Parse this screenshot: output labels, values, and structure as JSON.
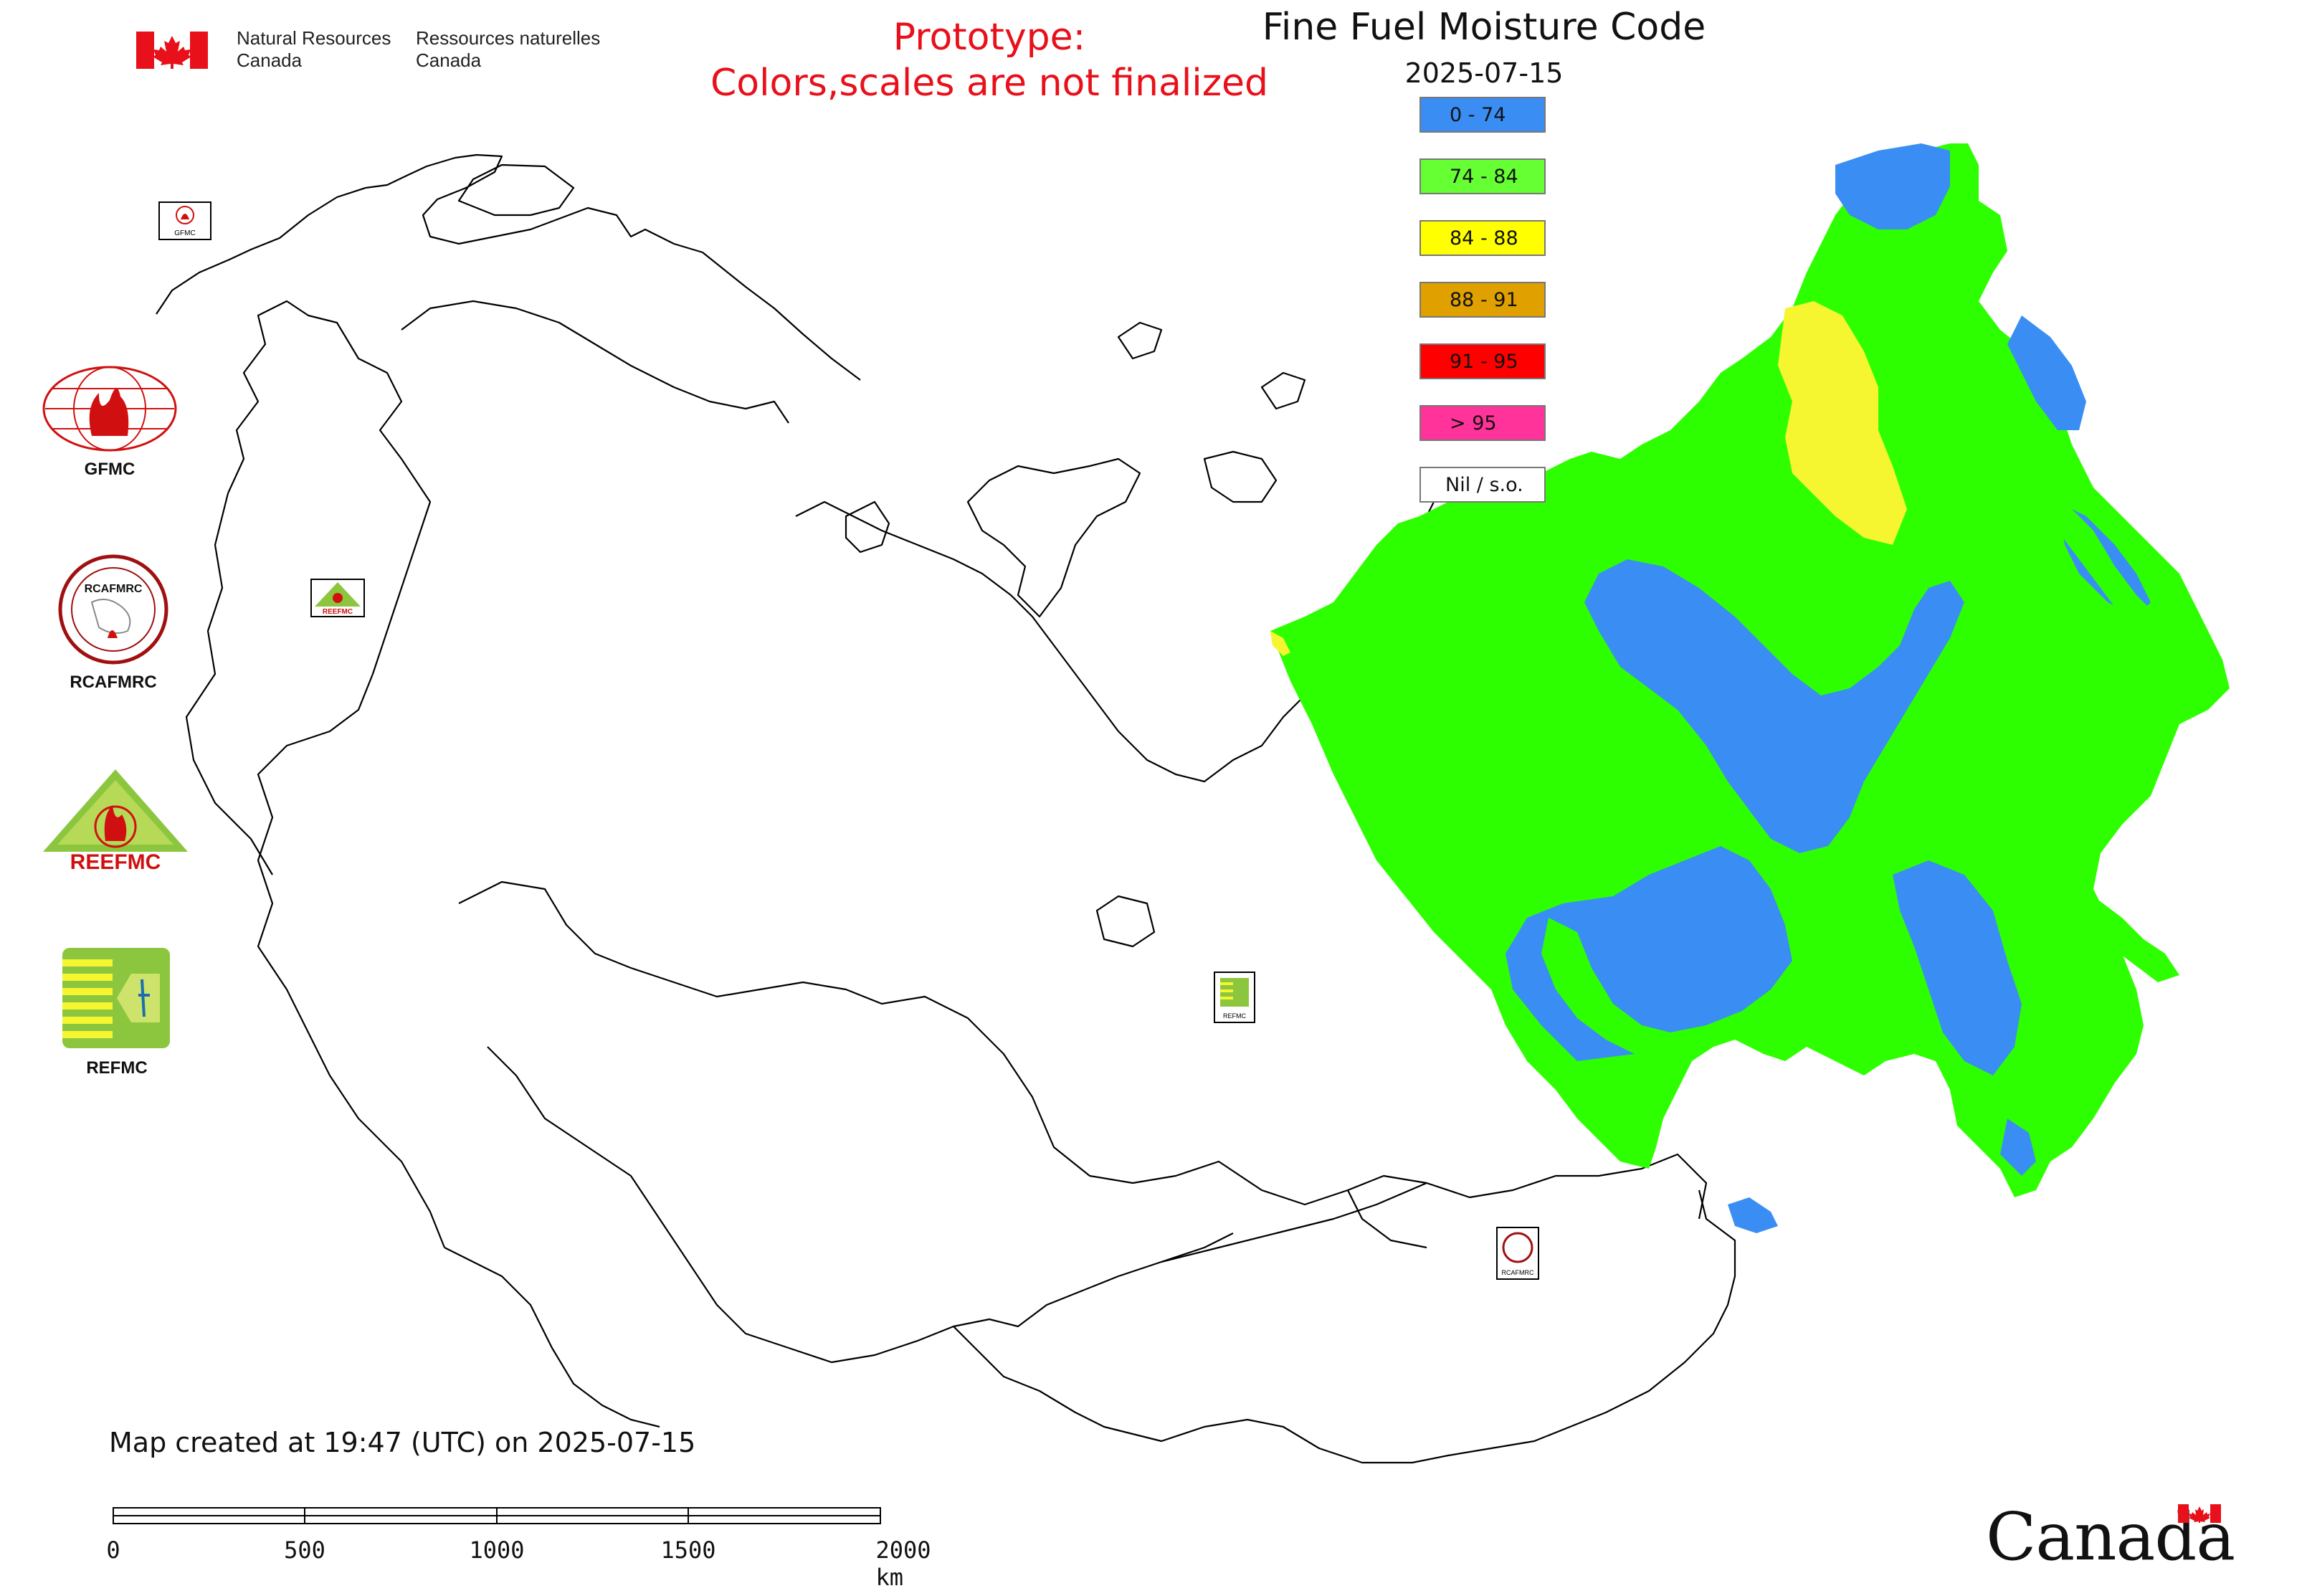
{
  "header": {
    "department_en_line1": "Natural Resources",
    "department_en_line2": "Canada",
    "department_fr_line1": "Ressources naturelles",
    "department_fr_line2": "Canada",
    "prototype_line1": "Prototype:",
    "prototype_line2": "Colors,scales are not finalized",
    "title": "Fine Fuel Moisture Code",
    "date": "2025-07-15"
  },
  "legend": [
    {
      "label": "0 - 74",
      "color": "#3a8ef3"
    },
    {
      "label": "74 - 84",
      "color": "#66ff33"
    },
    {
      "label": "84 - 88",
      "color": "#ffff00"
    },
    {
      "label": "88 - 91",
      "color": "#e0a000"
    },
    {
      "label": "91 - 95",
      "color": "#ff0000"
    },
    {
      "label": "> 95",
      "color": "#ff3399"
    },
    {
      "label": "Nil / s.o.",
      "color": "#ffffff"
    }
  ],
  "partner_logos": [
    {
      "label": "GFMC",
      "icon": "gfmc-globe-flame-logo"
    },
    {
      "label": "RCAFMRC",
      "icon": "rcafmrc-round-seal-logo"
    },
    {
      "label": "",
      "icon": "reefmc-triangle-flame-logo",
      "wordmark": "REEFMC"
    },
    {
      "label": "REFMC",
      "icon": "refmc-sigma-logo"
    }
  ],
  "map": {
    "colors": {
      "boundary": "#000000",
      "fuel_green": "#2eff00",
      "fuel_blue": "#3a8ef3",
      "fuel_yellow": "#f5f530"
    },
    "map_markers": [
      {
        "name": "gfmc-map-marker",
        "caption": "GFMC"
      },
      {
        "name": "reefmc-map-marker",
        "caption": "REEFMC"
      },
      {
        "name": "refmc-map-marker",
        "caption": "REFMC"
      },
      {
        "name": "rcafmrc-map-marker",
        "caption": "RCAFMRC"
      }
    ]
  },
  "footer": {
    "created_text": "Map created at 19:47 (UTC) on 2025-07-15",
    "scale_labels": [
      "0",
      "500",
      "1000",
      "1500",
      "2000 km"
    ],
    "canada_wordmark": "Canada"
  }
}
